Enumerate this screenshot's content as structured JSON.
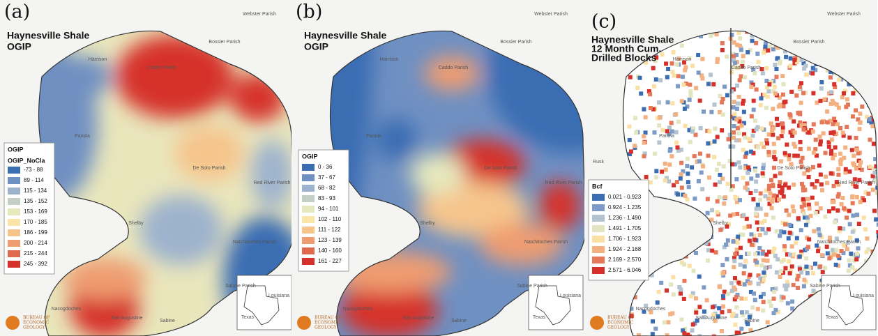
{
  "panels": [
    {
      "label": "(a)",
      "title": [
        "Haynesville Shale",
        "OGIP"
      ],
      "legend": {
        "title": "OGIP",
        "subtitle": "OGIP_NoCla",
        "items": [
          {
            "label": "-73 - 88",
            "color": "#3b6db3"
          },
          {
            "label": "89 - 114",
            "color": "#6f90c2"
          },
          {
            "label": "115 - 134",
            "color": "#9db2cd"
          },
          {
            "label": "135 - 152",
            "color": "#c4d0c6"
          },
          {
            "label": "153 - 169",
            "color": "#e6e8bd"
          },
          {
            "label": "170 - 185",
            "color": "#fae4a8"
          },
          {
            "label": "186 - 199",
            "color": "#f6c58c"
          },
          {
            "label": "200 - 214",
            "color": "#ef9c71"
          },
          {
            "label": "215 - 244",
            "color": "#df6a4e"
          },
          {
            "label": "245 - 392",
            "color": "#d6302a"
          }
        ]
      },
      "places": [
        "Harrison",
        "Caddo Parish",
        "Bossier Parish",
        "Webster Parish",
        "Panola",
        "De Soto Parish",
        "Red River Parish",
        "Shelby",
        "Natchitoches Parish",
        "Sabine Parish",
        "Nacogdoches",
        "San Augustine",
        "Sabine",
        "Texas",
        "Louisiana"
      ],
      "logo": [
        "BUREAU OF",
        "ECONOMIC",
        "GEOLOGY"
      ]
    },
    {
      "label": "(b)",
      "title": [
        "Haynesville Shale",
        "OGIP"
      ],
      "legend": {
        "title": "OGIP",
        "items": [
          {
            "label": "0 - 36",
            "color": "#3b6db3"
          },
          {
            "label": "37 - 67",
            "color": "#6f90c2"
          },
          {
            "label": "68 - 82",
            "color": "#9db2cd"
          },
          {
            "label": "83 - 93",
            "color": "#c4d0c6"
          },
          {
            "label": "94 - 101",
            "color": "#e6e8bd"
          },
          {
            "label": "102 - 110",
            "color": "#fae4a8"
          },
          {
            "label": "111 - 122",
            "color": "#f6c58c"
          },
          {
            "label": "123 - 139",
            "color": "#ef9c71"
          },
          {
            "label": "140 - 160",
            "color": "#df6a4e"
          },
          {
            "label": "161 - 227",
            "color": "#d6302a"
          }
        ]
      },
      "places": [
        "Harrison",
        "Caddo Parish",
        "Bossier Parish",
        "Webster Parish",
        "Panola",
        "De Soto Parish",
        "Red River Parish",
        "Shelby",
        "Natchitoches Parish",
        "Sabine Parish",
        "Nacogdoches",
        "San Augustine",
        "Sabine",
        "Texas",
        "Louisiana"
      ],
      "logo": [
        "BUREAU OF",
        "ECONOMIC",
        "GEOLOGY"
      ]
    },
    {
      "label": "(c)",
      "title": [
        "Haynesville Shale",
        "12 Month Cum.",
        "Drilled Blocks"
      ],
      "legend": {
        "title": "Bcf",
        "items": [
          {
            "label": "0.021 - 0.923",
            "color": "#3b6db3"
          },
          {
            "label": "0.924 - 1.235",
            "color": "#7d9bc6"
          },
          {
            "label": "1.236 - 1.490",
            "color": "#b3c3cf"
          },
          {
            "label": "1.491 - 1.705",
            "color": "#e3e5c0"
          },
          {
            "label": "1.706 - 1.923",
            "color": "#fae0a4"
          },
          {
            "label": "1.924 - 2.168",
            "color": "#f3b182"
          },
          {
            "label": "2.169 - 2.570",
            "color": "#e6785a"
          },
          {
            "label": "2.571 - 6.046",
            "color": "#d6302a"
          }
        ]
      },
      "places": [
        "Harrison",
        "Caddo Parish",
        "Bossier Parish",
        "Webster Parish",
        "Panola",
        "De Soto Parish",
        "Red River Parish",
        "Shelby",
        "Natchitoches Parish",
        "Sabine Parish",
        "Nacogdoches",
        "San Augustine",
        "Sabine",
        "Texas",
        "Louisiana",
        "Rusk"
      ],
      "logo": [
        "BUREAU OF",
        "ECONOMIC",
        "GEOLOGY"
      ]
    }
  ]
}
